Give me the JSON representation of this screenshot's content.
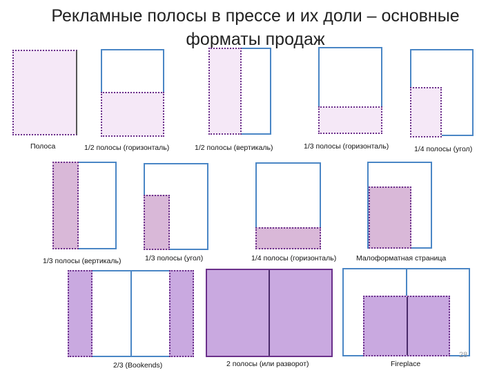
{
  "title_line1": "Рекламные полосы в прессе и их доли – основные",
  "title_line2": "форматы продаж",
  "labels": {
    "full_page": "Полоса",
    "half_horizontal": "1/2 полосы (горизонталь)",
    "half_vertical": "1/2 полосы (вертикаль)",
    "third_horizontal": "1/3 полосы (горизонталь)",
    "quarter_corner": "1/4 полосы (угол)",
    "third_vertical": "1/3 полосы (вертикаль)",
    "third_corner": "1/3 полосы (угол)",
    "quarter_horizontal": "1/4 полосы (горизонталь)",
    "small_format": "Малоформатная страница",
    "bookends": "2/3 (Bookends)",
    "spread": "2 полосы (или разворот)",
    "fireplace": "Fireplace"
  },
  "page_number": "28",
  "colors": {
    "page_border": "#4a86c5",
    "ad_border": "#6a2f8a",
    "ad_fill_light": "#f5e8f7",
    "ad_fill_mid": "#d9b8d8",
    "ad_fill_strong": "#c9a9e0"
  }
}
